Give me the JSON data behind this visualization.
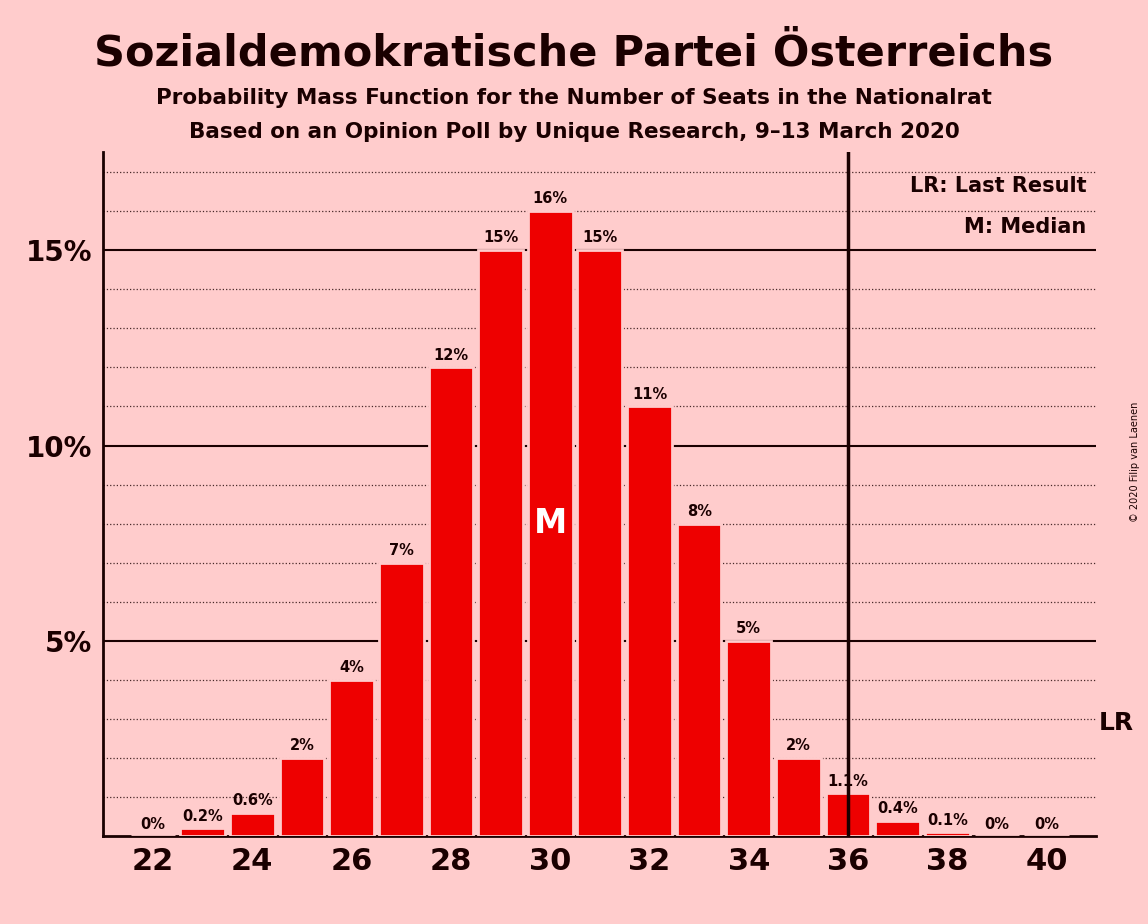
{
  "title": "Sozialdemokratische Partei Österreichs",
  "subtitle1": "Probability Mass Function for the Number of Seats in the Nationalrat",
  "subtitle2": "Based on an Opinion Poll by Unique Research, 9–13 March 2020",
  "copyright": "© 2020 Filip van Laenen",
  "seats": [
    22,
    23,
    24,
    25,
    26,
    27,
    28,
    29,
    30,
    31,
    32,
    33,
    34,
    35,
    36,
    37,
    38,
    39,
    40
  ],
  "probabilities": [
    0.0,
    0.2,
    0.6,
    2.0,
    4.0,
    7.0,
    12.0,
    15.0,
    16.0,
    15.0,
    11.0,
    8.0,
    5.0,
    2.0,
    1.1,
    0.4,
    0.1,
    0.0,
    0.0
  ],
  "bar_labels": [
    "0%",
    "0.2%",
    "0.6%",
    "2%",
    "4%",
    "7%",
    "12%",
    "15%",
    "16%",
    "15%",
    "11%",
    "8%",
    "5%",
    "2%",
    "1.1%",
    "0.4%",
    "0.1%",
    "0%",
    "0%"
  ],
  "bar_color": "#EE0000",
  "background_color": "#FFCCCC",
  "text_color": "#1a0000",
  "median_seat": 30,
  "lr_seat": 36,
  "legend_lr": "LR: Last Result",
  "legend_m": "M: Median",
  "ylim": [
    0,
    17.5
  ],
  "xlabel_ticks": [
    22,
    24,
    26,
    28,
    30,
    32,
    34,
    36,
    38,
    40
  ],
  "major_gridlines": [
    5,
    10,
    15
  ],
  "minor_gridlines": [
    1,
    2,
    3,
    4,
    6,
    7,
    8,
    9,
    11,
    12,
    13,
    14,
    16,
    17
  ]
}
